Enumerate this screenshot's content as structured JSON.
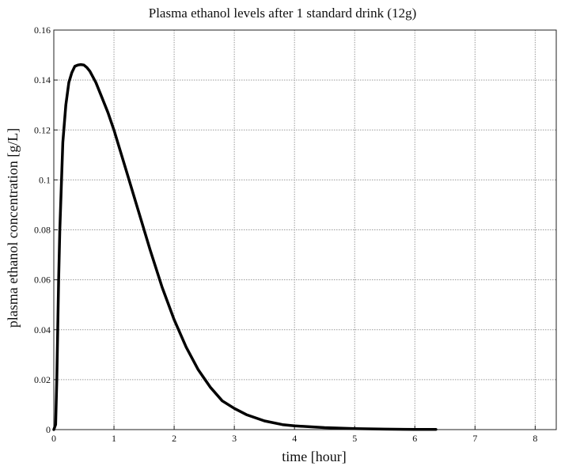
{
  "chart_data": {
    "type": "line",
    "title": "Plasma ethanol levels after 1 standard drink (12g)",
    "xlabel": "time [hour]",
    "ylabel": "plasma ethanol concentration [g/L]",
    "xlim": [
      0,
      8.35
    ],
    "ylim": [
      0,
      0.16
    ],
    "grid": true,
    "legend": "none",
    "x_ticks": [
      0,
      1,
      2,
      3,
      4,
      5,
      6,
      7,
      8
    ],
    "x_tick_labels": [
      "0",
      "1",
      "2",
      "3",
      "4",
      "5",
      "6",
      "7",
      "8"
    ],
    "y_ticks": [
      0,
      0.02,
      0.04,
      0.06,
      0.08,
      0.1,
      0.12,
      0.14,
      0.16
    ],
    "y_tick_labels": [
      "0",
      "0.02",
      "0.04",
      "0.06",
      "0.08",
      "0.1",
      "0.12",
      "0.14",
      "0.16"
    ],
    "series": [
      {
        "color": "#000000",
        "x": [
          0.0,
          0.03,
          0.05,
          0.08,
          0.1,
          0.15,
          0.2,
          0.25,
          0.3,
          0.35,
          0.4,
          0.45,
          0.5,
          0.55,
          0.6,
          0.7,
          0.8,
          0.9,
          1.0,
          1.2,
          1.4,
          1.6,
          1.8,
          2.0,
          2.2,
          2.4,
          2.6,
          2.8,
          3.0,
          3.2,
          3.5,
          3.8,
          4.0,
          4.5,
          5.0,
          5.5,
          6.0,
          6.35
        ],
        "values": [
          0.0,
          0.002,
          0.02,
          0.06,
          0.08,
          0.115,
          0.13,
          0.139,
          0.143,
          0.1455,
          0.146,
          0.1462,
          0.146,
          0.145,
          0.1435,
          0.139,
          0.133,
          0.127,
          0.12,
          0.104,
          0.088,
          0.072,
          0.057,
          0.044,
          0.033,
          0.024,
          0.017,
          0.0115,
          0.0085,
          0.006,
          0.0035,
          0.002,
          0.0015,
          0.0008,
          0.0004,
          0.0002,
          0.0001,
          0.0001
        ]
      }
    ]
  }
}
